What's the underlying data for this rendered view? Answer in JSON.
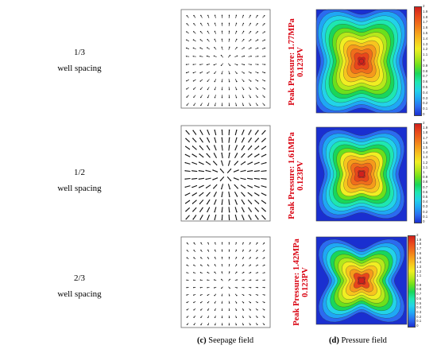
{
  "rows": [
    {
      "fraction": "1/3",
      "label": "well spacing",
      "peak": "Peak Pressure: 1.77MPa",
      "pv": "0.123PV"
    },
    {
      "fraction": "1/2",
      "label": "well spacing",
      "peak": "Peak Pressure: 1.61MPa",
      "pv": "0.123PV"
    },
    {
      "fraction": "2/3",
      "label": "well spacing",
      "peak": "Peak Pressure: 1.42MPa",
      "pv": "0.123PV"
    }
  ],
  "colorbar_ticks": [
    "2",
    "1.9",
    "1.8",
    "1.7",
    "1.6",
    "1.5",
    "1.4",
    "1.3",
    "1.2",
    "1.1",
    "1",
    "0.9",
    "0.8",
    "0.7",
    "0.6",
    "0.5",
    "0.4",
    "0.3",
    "0.2",
    "0.1",
    "0"
  ],
  "captions": {
    "seepage_letter": "(c)",
    "seepage_text": "Seepage field",
    "pressure_letter": "(d)",
    "pressure_text": "Pressure field"
  },
  "colors": {
    "accent": "#d9000f"
  }
}
